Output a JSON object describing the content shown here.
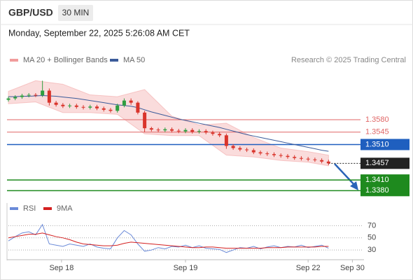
{
  "header": {
    "symbol": "GBP/USD",
    "interval": "30 MIN",
    "timestamp": "Monday, September 22, 2025 5:26:08 AM CET",
    "credit": "Research © 2025 Trading Central"
  },
  "chart_data": [
    {
      "type": "candlestick",
      "x": [
        0,
        1,
        2,
        3,
        4,
        5,
        6,
        7,
        8,
        9,
        10,
        11,
        12,
        13,
        14,
        15,
        16,
        17,
        18,
        19,
        20,
        21,
        22,
        23,
        24,
        25,
        26,
        27,
        28,
        29,
        30,
        31,
        32,
        33,
        34,
        35,
        36,
        37,
        38,
        39,
        40,
        41,
        42,
        43,
        44,
        45,
        46,
        47
      ],
      "open": [
        1.3636,
        1.364,
        1.3644,
        1.3648,
        1.365,
        1.3649,
        1.3662,
        1.3628,
        1.3622,
        1.3618,
        1.362,
        1.3616,
        1.3614,
        1.3617,
        1.3612,
        1.3608,
        1.3605,
        1.362,
        1.3634,
        1.3628,
        1.36,
        1.3556,
        1.3552,
        1.355,
        1.3553,
        1.3549,
        1.3547,
        1.3551,
        1.3546,
        1.3548,
        1.3544,
        1.354,
        1.3536,
        1.3506,
        1.35,
        1.3496,
        1.3494,
        1.3488,
        1.3485,
        1.3483,
        1.348,
        1.3478,
        1.3475,
        1.3472,
        1.347,
        1.3468,
        1.3466,
        1.3462
      ],
      "high": [
        1.3645,
        1.3649,
        1.3653,
        1.3655,
        1.3655,
        1.369,
        1.3668,
        1.3633,
        1.3627,
        1.3625,
        1.3625,
        1.3621,
        1.3622,
        1.3622,
        1.3617,
        1.3613,
        1.3625,
        1.364,
        1.364,
        1.3632,
        1.3605,
        1.356,
        1.3557,
        1.3558,
        1.3558,
        1.3554,
        1.3556,
        1.3556,
        1.3553,
        1.3553,
        1.3549,
        1.3545,
        1.3541,
        1.3511,
        1.3505,
        1.3501,
        1.3499,
        1.3493,
        1.349,
        1.3488,
        1.3485,
        1.3483,
        1.348,
        1.3477,
        1.3475,
        1.3473,
        1.3471,
        1.3467
      ],
      "low": [
        1.3631,
        1.3635,
        1.3639,
        1.3643,
        1.3644,
        1.3644,
        1.362,
        1.3617,
        1.3613,
        1.3613,
        1.3611,
        1.3609,
        1.3609,
        1.3607,
        1.3603,
        1.36,
        1.36,
        1.3615,
        1.3622,
        1.3595,
        1.3545,
        1.3547,
        1.3545,
        1.3545,
        1.3544,
        1.3542,
        1.3542,
        1.3541,
        1.3541,
        1.3539,
        1.3535,
        1.3531,
        1.3498,
        1.3495,
        1.3491,
        1.3489,
        1.3483,
        1.348,
        1.3478,
        1.3475,
        1.3473,
        1.347,
        1.3467,
        1.3465,
        1.3463,
        1.3461,
        1.3457,
        1.3452
      ],
      "close": [
        1.364,
        1.3644,
        1.3648,
        1.365,
        1.3649,
        1.3662,
        1.3628,
        1.3622,
        1.3618,
        1.362,
        1.3616,
        1.3614,
        1.3617,
        1.3612,
        1.3608,
        1.3605,
        1.362,
        1.3634,
        1.3628,
        1.36,
        1.3556,
        1.3552,
        1.355,
        1.3553,
        1.3549,
        1.3547,
        1.3551,
        1.3546,
        1.3548,
        1.3544,
        1.354,
        1.3536,
        1.3506,
        1.35,
        1.3496,
        1.3494,
        1.3488,
        1.3485,
        1.3483,
        1.348,
        1.3478,
        1.3475,
        1.3472,
        1.347,
        1.3468,
        1.3466,
        1.3462,
        1.3457
      ],
      "up_color": "#2e9e3f",
      "down_color": "#d9342b",
      "series": [
        {
          "name": "MA 20 + Bollinger Bands",
          "color": "#f19c9c",
          "x": [
            0,
            4,
            8,
            12,
            16,
            20,
            24,
            28,
            32,
            36,
            40,
            44,
            47
          ],
          "upper": [
            1.366,
            1.369,
            1.368,
            1.365,
            1.3645,
            1.3665,
            1.359,
            1.3565,
            1.357,
            1.353,
            1.35,
            1.349,
            1.348
          ],
          "lower": [
            1.3625,
            1.363,
            1.36,
            1.36,
            1.3595,
            1.354,
            1.3535,
            1.3535,
            1.348,
            1.3475,
            1.3465,
            1.346,
            1.345
          ]
        },
        {
          "name": "MA 50",
          "color": "#3b5b9a",
          "values": [
            1.3645,
            1.3645,
            1.3646,
            1.3646,
            1.3647,
            1.3648,
            1.3647,
            1.3646,
            1.3644,
            1.3642,
            1.364,
            1.3637,
            1.3634,
            1.3631,
            1.3628,
            1.3625,
            1.3622,
            1.362,
            1.3618,
            1.3614,
            1.3608,
            1.3602,
            1.3597,
            1.3592,
            1.3587,
            1.3582,
            1.3578,
            1.3574,
            1.357,
            1.3566,
            1.3562,
            1.3558,
            1.3553,
            1.3548,
            1.3543,
            1.3538,
            1.3534,
            1.353,
            1.3526,
            1.3522,
            1.3518,
            1.3514,
            1.351,
            1.3506,
            1.3502,
            1.3498,
            1.3494,
            1.3491
          ]
        }
      ],
      "levels": [
        {
          "value": 1.358,
          "label": "1.3580",
          "color": "#e06666",
          "box": false
        },
        {
          "value": 1.3545,
          "label": "1.3545",
          "color": "#e06666",
          "box": false
        },
        {
          "value": 1.351,
          "label": "1.3510",
          "color": "#1f5fbf",
          "box": true
        },
        {
          "value": 1.3457,
          "label": "1.3457",
          "color": "#222222",
          "box": true,
          "dotted": true
        },
        {
          "value": 1.341,
          "label": "1.3410",
          "color": "#1e8a1e",
          "box": true
        },
        {
          "value": 1.338,
          "label": "1.3380",
          "color": "#1e8a1e",
          "box": true
        }
      ],
      "xlim": [
        0,
        52
      ],
      "ylim": [
        1.3355,
        1.373
      ]
    },
    {
      "type": "line",
      "x": [
        0,
        1,
        2,
        3,
        4,
        5,
        6,
        7,
        8,
        9,
        10,
        11,
        12,
        13,
        14,
        15,
        16,
        17,
        18,
        19,
        20,
        21,
        22,
        23,
        24,
        25,
        26,
        27,
        28,
        29,
        30,
        31,
        32,
        33,
        34,
        35,
        36,
        37,
        38,
        39,
        40,
        41,
        42,
        43,
        44,
        45,
        46,
        47
      ],
      "series": [
        {
          "name": "RSI",
          "color": "#6a8ad8",
          "values": [
            45,
            52,
            58,
            60,
            55,
            72,
            40,
            38,
            36,
            40,
            38,
            36,
            40,
            35,
            33,
            32,
            50,
            62,
            55,
            40,
            28,
            30,
            34,
            32,
            36,
            35,
            38,
            34,
            37,
            33,
            32,
            31,
            26,
            30,
            34,
            33,
            36,
            32,
            35,
            37,
            34,
            36,
            35,
            38,
            34,
            36,
            38,
            33
          ]
        },
        {
          "name": "9MA",
          "color": "#d42020",
          "values": [
            50,
            52,
            54,
            56,
            56,
            58,
            55,
            52,
            50,
            47,
            43,
            40,
            39,
            38,
            37,
            37,
            38,
            41,
            43,
            42,
            41,
            40,
            39,
            38,
            37,
            36,
            35,
            34,
            34,
            35,
            35,
            34,
            33,
            33,
            33,
            33,
            33,
            33,
            34,
            34,
            34,
            35,
            35,
            35,
            35,
            35,
            36,
            36
          ]
        }
      ],
      "xlim": [
        0,
        52
      ],
      "ylim": [
        21,
        82
      ],
      "yticks": [
        70,
        50,
        30
      ],
      "grid": true,
      "xticks": [
        {
          "value": 7.8,
          "label": "Sep 18"
        },
        {
          "value": 26,
          "label": "Sep 19"
        },
        {
          "value": 44,
          "label": "Sep 22"
        },
        {
          "value": 50.5,
          "label": "Sep 30"
        }
      ]
    }
  ]
}
